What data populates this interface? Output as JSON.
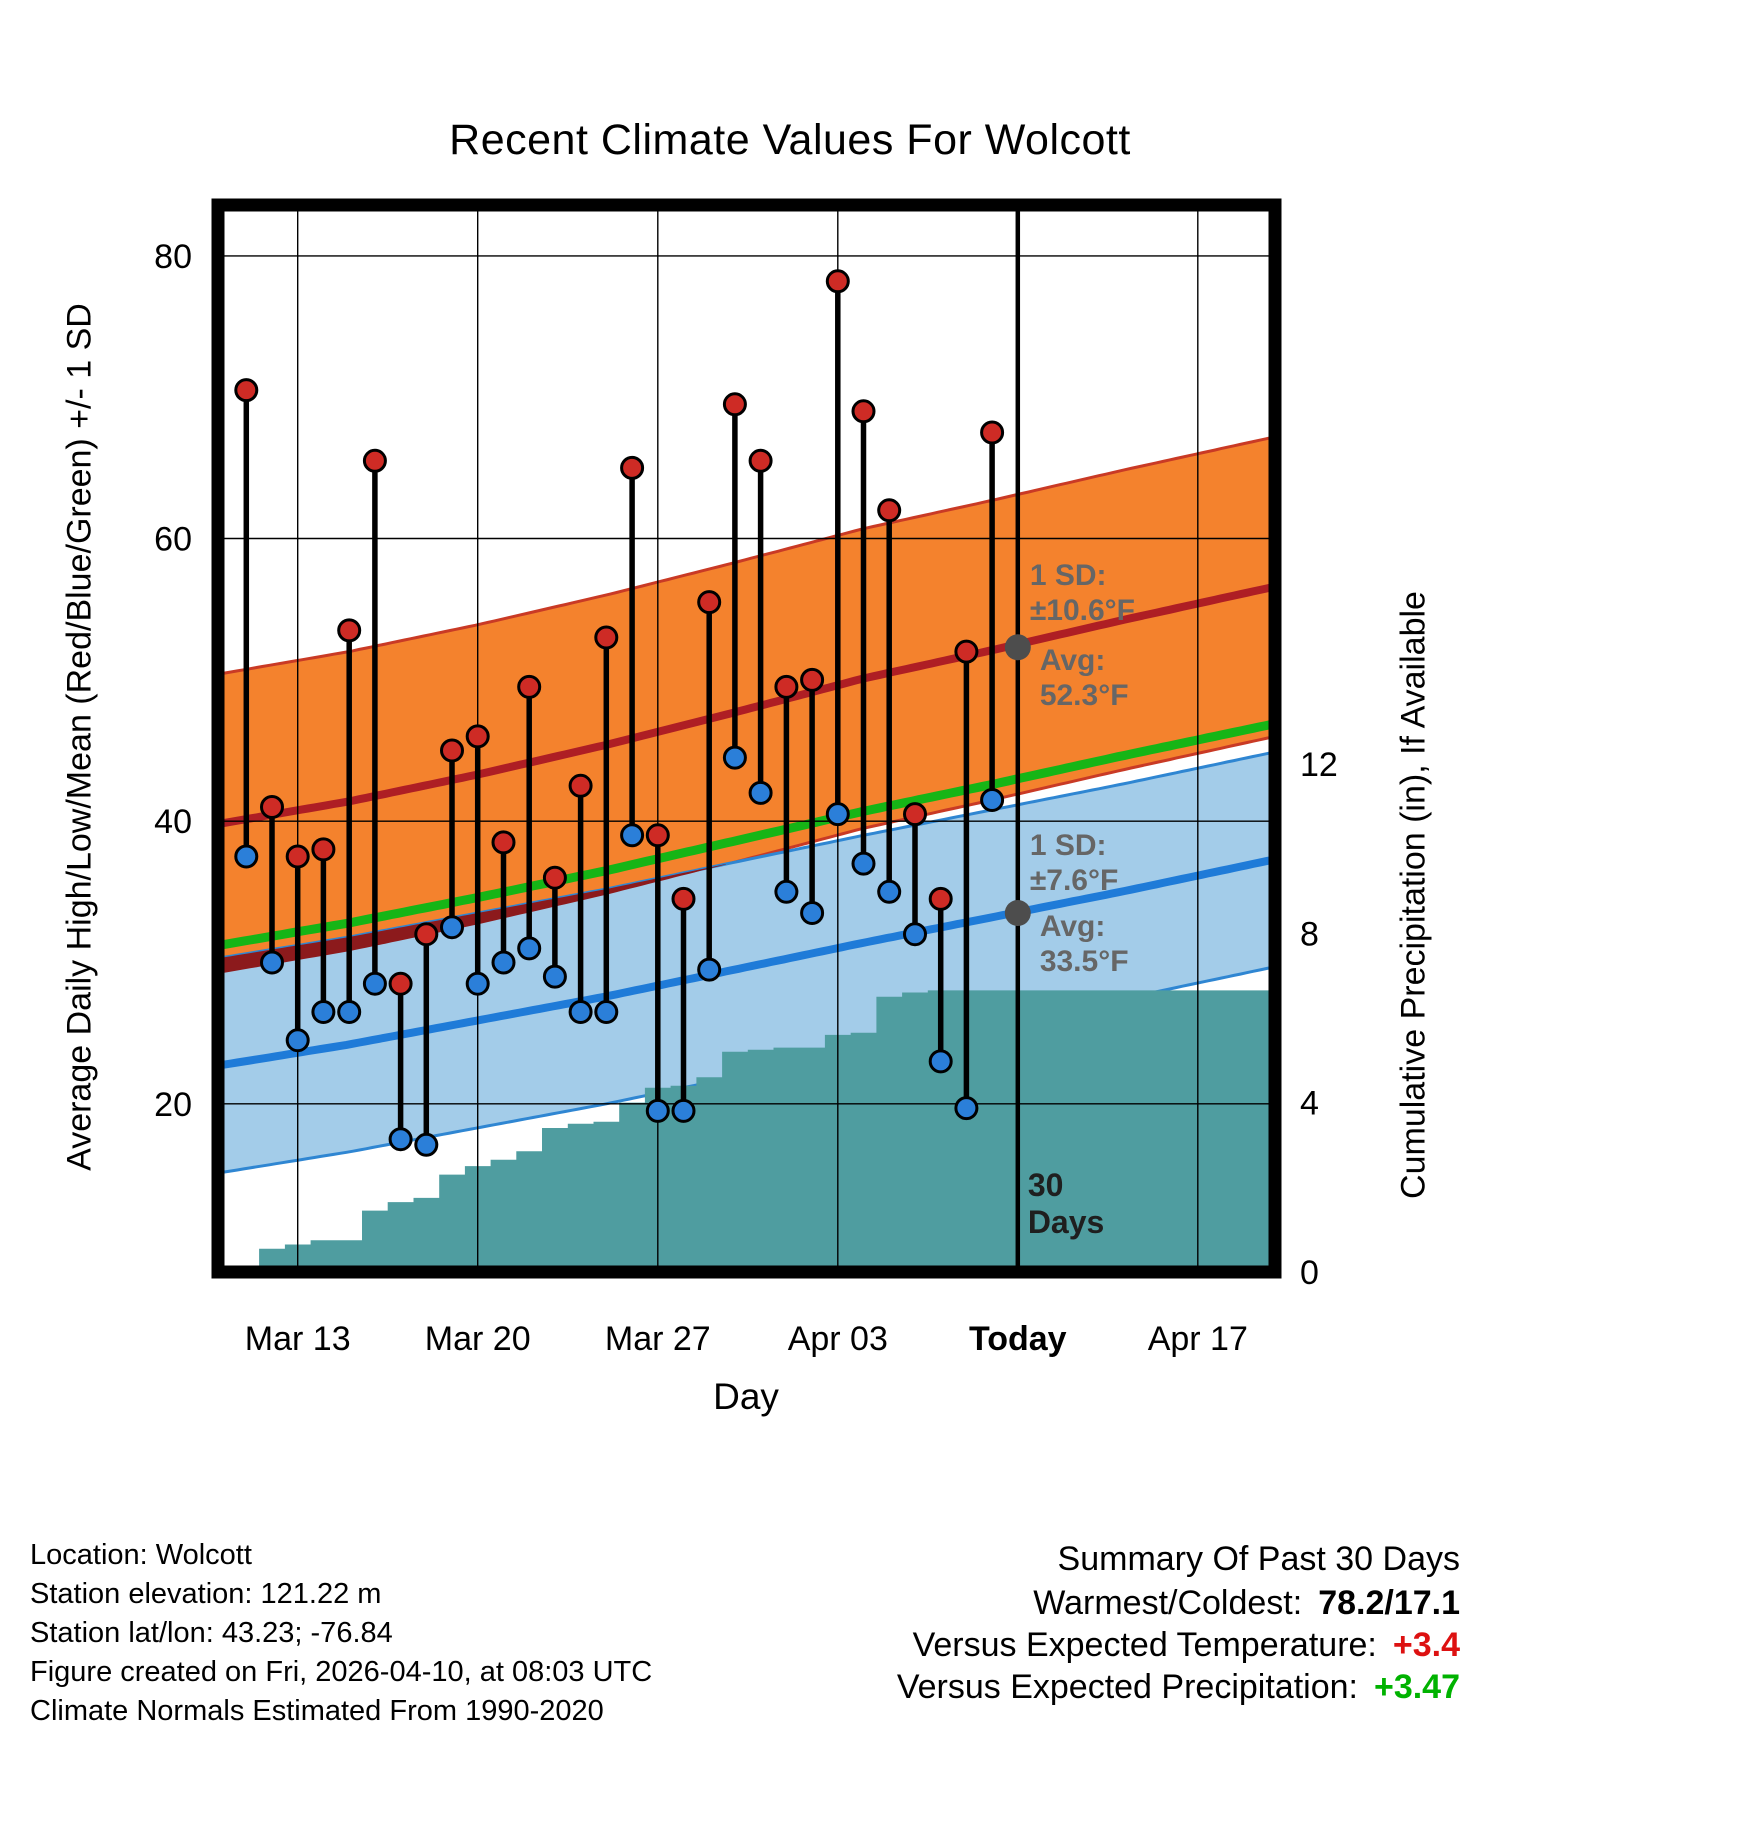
{
  "title": "Recent Climate Values For Wolcott",
  "axes": {
    "left_label": "Average Daily High/Low/Mean (Red/Blue/Green) +/- 1 SD",
    "right_label": "Cumulative Precipitation (in), If Available",
    "x_label": "Day",
    "left_ticks": [
      {
        "value": 80,
        "label": "80"
      },
      {
        "value": 60,
        "label": "60"
      },
      {
        "value": 40,
        "label": "40"
      },
      {
        "value": 20,
        "label": "20"
      }
    ],
    "right_ticks": [
      {
        "value": 12,
        "label": "12"
      },
      {
        "value": 8,
        "label": "8"
      },
      {
        "value": 4,
        "label": "4"
      },
      {
        "value": 0,
        "label": "0"
      }
    ],
    "x_ticks": [
      {
        "day": 2,
        "label": "Mar 13",
        "bold": false
      },
      {
        "day": 9,
        "label": "Mar 20",
        "bold": false
      },
      {
        "day": 16,
        "label": "Mar 27",
        "bold": false
      },
      {
        "day": 23,
        "label": "Apr 03",
        "bold": false
      },
      {
        "day": 30,
        "label": "Today",
        "bold": true
      },
      {
        "day": 37,
        "label": "Apr 17",
        "bold": false
      }
    ]
  },
  "chart_data": {
    "type": "combo: daily high/low temperature stems + climatology bands (avg +/- 1 SD) + cumulative precipitation step area",
    "x_unit": "days since Mar 11",
    "x_range": [
      -1.1,
      40.0
    ],
    "temp_range": [
      8.1,
      83.6
    ],
    "temp_unit": "F",
    "precip_range": [
      0,
      25.2
    ],
    "precip_unit": "in",
    "today_day": 30,
    "days": [
      {
        "day": 0,
        "date": "Mar 11",
        "high": 70.5,
        "low": 37.5
      },
      {
        "day": 1,
        "date": "Mar 12",
        "high": 41.0,
        "low": 30.0
      },
      {
        "day": 2,
        "date": "Mar 13",
        "high": 37.5,
        "low": 24.5
      },
      {
        "day": 3,
        "date": "Mar 14",
        "high": 38.0,
        "low": 26.5
      },
      {
        "day": 4,
        "date": "Mar 15",
        "high": 53.5,
        "low": 26.5
      },
      {
        "day": 5,
        "date": "Mar 16",
        "high": 65.5,
        "low": 28.5
      },
      {
        "day": 6,
        "date": "Mar 17",
        "high": 28.5,
        "low": 17.5
      },
      {
        "day": 7,
        "date": "Mar 18",
        "high": 32.0,
        "low": 17.1
      },
      {
        "day": 8,
        "date": "Mar 19",
        "high": 45.0,
        "low": 32.5
      },
      {
        "day": 9,
        "date": "Mar 20",
        "high": 46.0,
        "low": 28.5
      },
      {
        "day": 10,
        "date": "Mar 21",
        "high": 38.5,
        "low": 30.0
      },
      {
        "day": 11,
        "date": "Mar 22",
        "high": 49.5,
        "low": 31.0
      },
      {
        "day": 12,
        "date": "Mar 23",
        "high": 36.0,
        "low": 29.0
      },
      {
        "day": 13,
        "date": "Mar 24",
        "high": 42.5,
        "low": 26.5
      },
      {
        "day": 14,
        "date": "Mar 25",
        "high": 53.0,
        "low": 26.5
      },
      {
        "day": 15,
        "date": "Mar 26",
        "high": 65.0,
        "low": 39.0
      },
      {
        "day": 16,
        "date": "Mar 27",
        "high": 39.0,
        "low": 19.5
      },
      {
        "day": 17,
        "date": "Mar 28",
        "high": 34.5,
        "low": 19.5
      },
      {
        "day": 18,
        "date": "Mar 29",
        "high": 55.5,
        "low": 29.5
      },
      {
        "day": 19,
        "date": "Mar 30",
        "high": 69.5,
        "low": 44.5
      },
      {
        "day": 20,
        "date": "Mar 31",
        "high": 65.5,
        "low": 42.0
      },
      {
        "day": 21,
        "date": "Apr 01",
        "high": 49.5,
        "low": 35.0
      },
      {
        "day": 22,
        "date": "Apr 02",
        "high": 50.0,
        "low": 33.5
      },
      {
        "day": 23,
        "date": "Apr 03",
        "high": 78.2,
        "low": 40.5
      },
      {
        "day": 24,
        "date": "Apr 04",
        "high": 69.0,
        "low": 37.0
      },
      {
        "day": 25,
        "date": "Apr 05",
        "high": 62.0,
        "low": 35.0
      },
      {
        "day": 26,
        "date": "Apr 06",
        "high": 40.5,
        "low": 32.0
      },
      {
        "day": 27,
        "date": "Apr 07",
        "high": 34.5,
        "low": 23.0
      },
      {
        "day": 28,
        "date": "Apr 08",
        "high": 52.0,
        "low": 19.7
      },
      {
        "day": 29,
        "date": "Apr 09",
        "high": 67.5,
        "low": 41.5
      }
    ],
    "climatology": {
      "days": [
        -1.1,
        4,
        9,
        14,
        19,
        24,
        29,
        34,
        40
      ],
      "high_avg": [
        39.8,
        41.4,
        43.3,
        45.4,
        47.7,
        50.1,
        52.1,
        54.2,
        56.6
      ],
      "low_avg": [
        22.7,
        24.2,
        25.9,
        27.6,
        29.5,
        31.4,
        33.2,
        35.0,
        37.3
      ],
      "mean_avg": [
        31.2,
        32.8,
        34.6,
        36.5,
        38.6,
        40.7,
        42.6,
        44.6,
        46.9
      ],
      "high_sd": 10.6,
      "low_sd": 7.6
    },
    "precip_cumulative": {
      "start_day": 0,
      "values": [
        0.15,
        0.55,
        0.65,
        0.75,
        0.75,
        1.45,
        1.65,
        1.75,
        2.3,
        2.5,
        2.65,
        2.85,
        3.4,
        3.5,
        3.55,
        4.0,
        4.35,
        4.4,
        4.6,
        5.2,
        5.25,
        5.3,
        5.3,
        5.6,
        5.65,
        6.5,
        6.6,
        6.65,
        6.65,
        6.65
      ],
      "extends_flat_to_right_edge": true
    }
  },
  "annotations": {
    "high_sd_label": "1 SD:",
    "high_sd_value": "±10.6°F",
    "high_avg_label": "Avg:",
    "high_avg_value": "52.3°F",
    "high_avg_temp": 52.3,
    "low_sd_label": "1 SD:",
    "low_sd_value": "±7.6°F",
    "low_avg_label": "Avg:",
    "low_avg_value": "33.5°F",
    "low_avg_temp": 33.5,
    "today_label_line1": "30",
    "today_label_line2": "Days"
  },
  "colors": {
    "high_band": "#F4822D",
    "high_band_edge": "#C93A25",
    "high_avg_line": "#AE1E24",
    "overlap_band": "#8C1A1C",
    "low_band": "#A3CCE9",
    "low_band_edge": "#2F86D2",
    "low_avg_line": "#1F7BD8",
    "mean_line": "#16B516",
    "precip_area": "#4F9DA0",
    "stem": "#000000",
    "high_dot": "#CE2B25",
    "low_dot": "#2B7FD9",
    "grid": "#000000",
    "today_line": "#000000",
    "avg_dot": "#4d4d4d",
    "annotation_text": "#666666"
  },
  "footer": {
    "left_lines": [
      "Location: Wolcott",
      "Station elevation: 121.22 m",
      "Station lat/lon: 43.23; -76.84",
      "Figure created on Fri, 2026-04-10, at 08:03 UTC",
      "Climate Normals Estimated From 1990-2020"
    ],
    "summary": {
      "title": "Summary Of Past 30 Days",
      "rows": [
        {
          "label": "Warmest/Coldest:",
          "value": "78.2/17.1",
          "value_color": "#000000"
        },
        {
          "label": "Versus Expected Temperature:",
          "value": "+3.4",
          "value_color": "#DD1111"
        },
        {
          "label": "Versus Expected Precipitation:",
          "value": "+3.47",
          "value_color": "#00B200"
        }
      ]
    }
  }
}
